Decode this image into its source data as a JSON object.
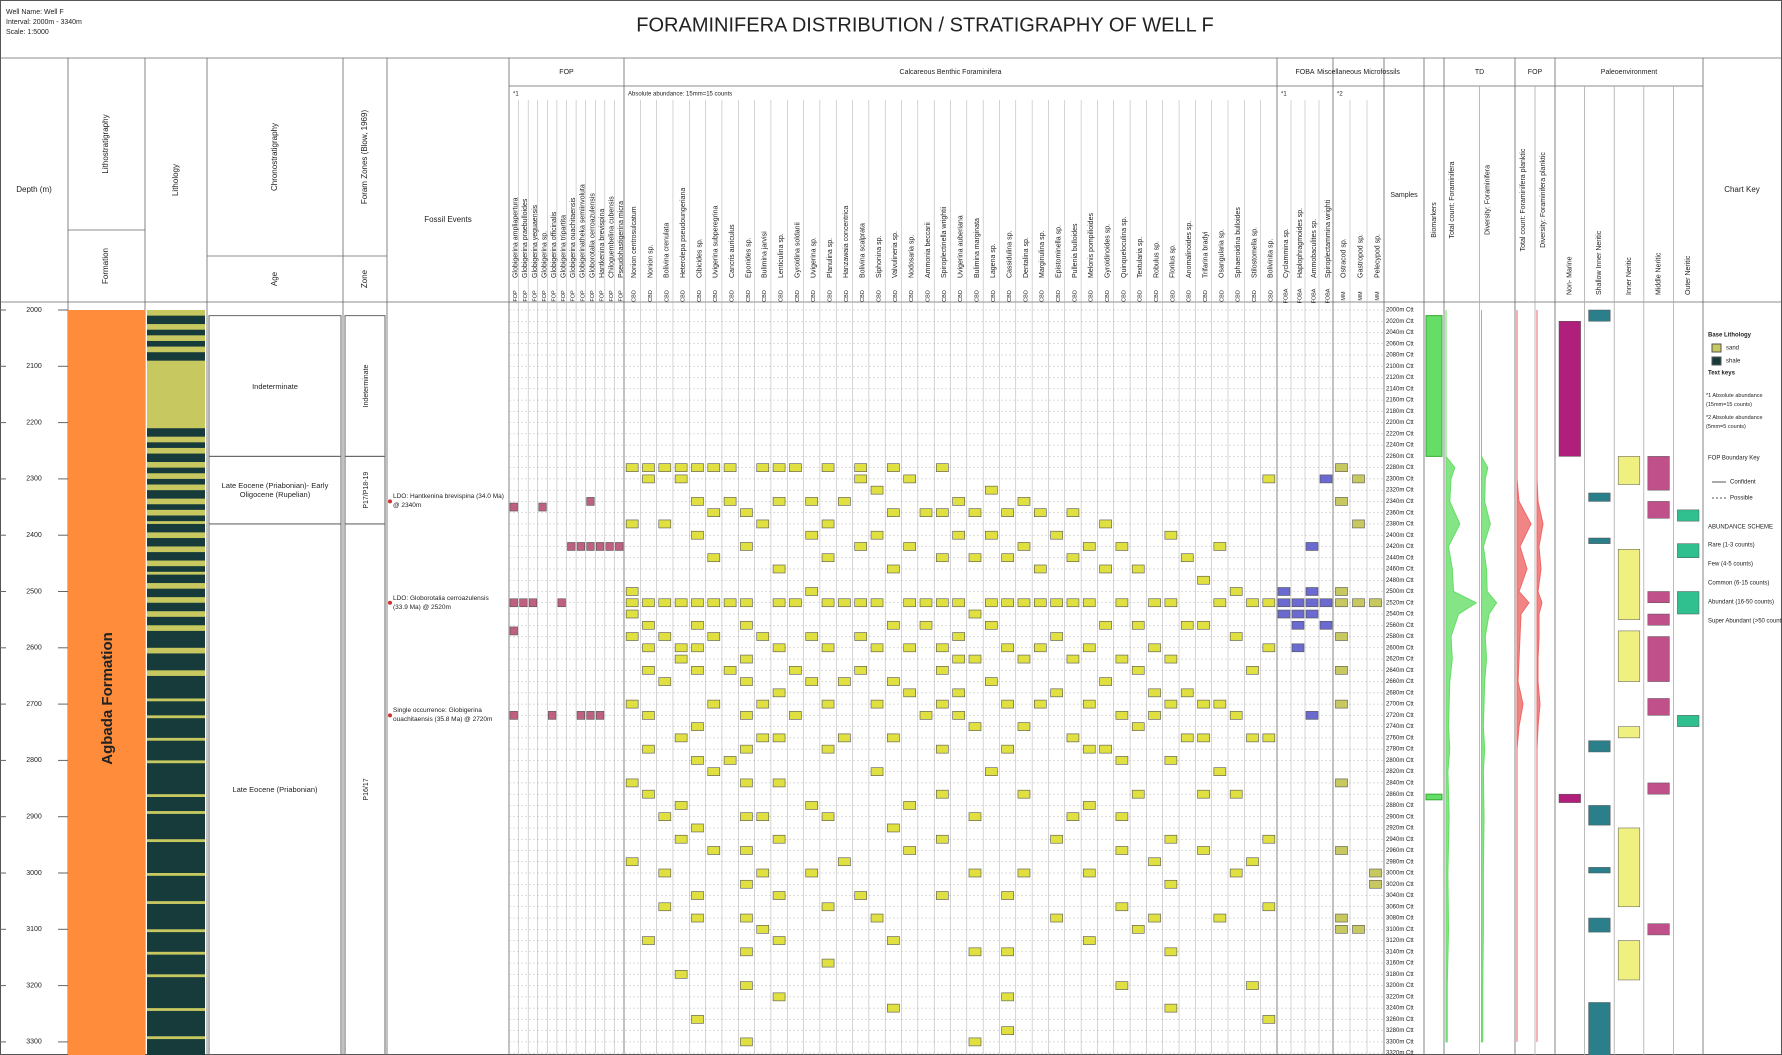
{
  "header": {
    "well_name": "Well Name: Well F",
    "interval": "Interval: 2000m - 3340m",
    "scale": "Scale: 1:5000",
    "title": "FORAMINIFERA DISTRIBUTION  /  STRATIGRAPHY OF WELL F"
  },
  "columns": {
    "depth": "Depth (m)",
    "litho": "Lithostratigraphy",
    "formation": "Formation",
    "lithology": "Lithology",
    "chrono": "Chronostratigraphy",
    "age": "Age",
    "zones": "Foram Zones (Blow, 1969)",
    "zone": "Zone",
    "events": "Fossil Events",
    "samples": "Samples",
    "biomarkers": "Biomarkers",
    "key": "Chart Key"
  },
  "depth_axis": {
    "range": [
      2000,
      3340
    ],
    "ticks": [
      2000,
      2100,
      2200,
      2300,
      2400,
      2500,
      2600,
      2700,
      2800,
      2900,
      3000,
      3100,
      3200,
      3300
    ]
  },
  "formation": {
    "name": "Agbada Formation",
    "color": "#ff8c3a",
    "top": 2000,
    "base": 3340
  },
  "lithology": {
    "sand_color": "#c8c860",
    "shale_color": "#173b3b",
    "sand_beds": [
      [
        2000,
        2010
      ],
      [
        2025,
        2035
      ],
      [
        2045,
        2055
      ],
      [
        2065,
        2075
      ],
      [
        2090,
        2210
      ],
      [
        2225,
        2235
      ],
      [
        2245,
        2255
      ],
      [
        2270,
        2280
      ],
      [
        2290,
        2300
      ],
      [
        2310,
        2320
      ],
      [
        2335,
        2345
      ],
      [
        2355,
        2365
      ],
      [
        2375,
        2380
      ],
      [
        2395,
        2405
      ],
      [
        2420,
        2430
      ],
      [
        2445,
        2455
      ],
      [
        2465,
        2470
      ],
      [
        2485,
        2495
      ],
      [
        2510,
        2520
      ],
      [
        2535,
        2545
      ],
      [
        2560,
        2570
      ],
      [
        2600,
        2610
      ],
      [
        2640,
        2650
      ],
      [
        2690,
        2695
      ],
      [
        2720,
        2725
      ],
      [
        2760,
        2765
      ],
      [
        2800,
        2805
      ],
      [
        2860,
        2865
      ],
      [
        2890,
        2895
      ],
      [
        2940,
        2945
      ],
      [
        3000,
        3005
      ],
      [
        3050,
        3055
      ],
      [
        3100,
        3105
      ],
      [
        3140,
        3145
      ],
      [
        3180,
        3185
      ],
      [
        3240,
        3245
      ],
      [
        3290,
        3295
      ]
    ]
  },
  "ages": [
    {
      "label": "Indeterminate",
      "top": 2010,
      "base": 2260
    },
    {
      "label": "Late Eocene (Priabonian)- Early Oligocene (Rupelian)",
      "top": 2260,
      "base": 2380
    },
    {
      "label": "Late Eocene (Priabonian)",
      "top": 2380,
      "base": 3340
    }
  ],
  "zones": [
    {
      "label": "Indeterminate",
      "top": 2010,
      "base": 2260
    },
    {
      "label": "P17/P18-19",
      "top": 2260,
      "base": 2380
    },
    {
      "label": "P16/17",
      "top": 2380,
      "base": 3340
    }
  ],
  "events": [
    {
      "label": "LDO: Hantkenina brevispina (34.0 Ma) @ 2340m",
      "depth": 2340
    },
    {
      "label": "LDO: Globorotalia cerroazulensis (33.9 Ma) @ 2520m",
      "depth": 2520
    },
    {
      "label": "Single occurrence: Globigerina ouachitaensis (35.8 Ma) @ 2720m",
      "depth": 2720
    }
  ],
  "groups": [
    {
      "title": "FOP",
      "code": "FOP",
      "color": "#c06080",
      "note": "*1",
      "species": [
        "Globigerina ampliapertura",
        "Globigerina praebulloides",
        "Globigerina yeguaensis",
        "Globigerina sp.",
        "Globigerina officinalis",
        "Globigerina tripartita",
        "Globigerina ouachitaensis",
        "Globigerinatheka semiinvoluta",
        "Globorotalia cerroazulensis",
        "Hantkenina brevispina",
        "Chiloguembelina cubensis",
        "Pseudohastigerina micra"
      ],
      "occurrences": [
        [
          2350,
          2520,
          2570,
          2720
        ],
        [
          2520
        ],
        [
          2520
        ],
        [
          2350
        ],
        [
          2720
        ],
        [
          2520
        ],
        [
          2420
        ],
        [
          2420,
          2720
        ],
        [
          2340,
          2420,
          2720
        ],
        [
          2420,
          2720
        ],
        [
          2420
        ],
        [
          2420
        ]
      ]
    },
    {
      "title": "Calcareous Benthic Foraminifera",
      "code": "CBD",
      "color": "#e0e040",
      "note": "Absolute abundance: 15mm=15 counts",
      "species": [
        "Nonion centrosulcatum",
        "Nonion sp.",
        "Bolivina crenulata",
        "Heterolepa pseudoungeriana",
        "Cibicides sp.",
        "Uvigerina subperegrina",
        "Cancris auriculus",
        "Eponides sp.",
        "Bulimina jarvisi",
        "Lenticulina sp.",
        "Gyroidina soldanii",
        "Uvigerina sp.",
        "Planulina sp.",
        "Hanzawaia concentrica",
        "Bolivina scalprata",
        "Siphonina sp.",
        "Valvulineria sp.",
        "Nodosaria sp.",
        "Ammonia beccarii",
        "Spiroplectinella wrightii",
        "Uvigerina auberiana",
        "Bulimina marginata",
        "Lagena sp.",
        "Cassidulina sp.",
        "Dentalina sp.",
        "Marginulina sp.",
        "Epistominella sp.",
        "Pullenia bulloides",
        "Melonis pompilioides",
        "Gyroidinoides sp.",
        "Quinqueloculina sp.",
        "Textularia sp.",
        "Robulus sp.",
        "Florilus sp.",
        "Anomalinoides sp.",
        "Trifarina bradyi",
        "Osangularia sp.",
        "Sphaeroidina bulloides",
        "Stilostomella sp.",
        "Bolivinita sp."
      ],
      "occurrences": [
        [
          2280,
          2380,
          2500,
          2520,
          2540,
          2580,
          2700,
          2840,
          2980
        ],
        [
          2280,
          2300,
          2520,
          2560,
          2600,
          2640,
          2720,
          2780,
          2860,
          3120
        ],
        [
          2280,
          2380,
          2520,
          2580,
          2660,
          2900,
          3000,
          3060
        ],
        [
          2280,
          2300,
          2520,
          2600,
          2620,
          2760,
          2880,
          2940,
          3180
        ],
        [
          2280,
          2340,
          2400,
          2520,
          2560,
          2600,
          2640,
          2740,
          2800,
          2920,
          3040,
          3080,
          3260
        ],
        [
          2280,
          2360,
          2440,
          2520,
          2580,
          2700,
          2820,
          2960
        ],
        [
          2280,
          2340,
          2520,
          2640,
          2800
        ],
        [
          2360,
          2420,
          2520,
          2560,
          2620,
          2660,
          2720,
          2780,
          2840,
          2900,
          2960,
          3020,
          3080,
          3140,
          3200,
          3300
        ],
        [
          2280,
          2380,
          2580,
          2700,
          2760,
          2900,
          3000,
          3100
        ],
        [
          2280,
          2340,
          2460,
          2520,
          2600,
          2680,
          2760,
          2840,
          2940,
          3040,
          3120,
          3220
        ],
        [
          2280,
          2520,
          2640,
          2720
        ],
        [
          2340,
          2400,
          2500,
          2580,
          2660,
          2880,
          3000
        ],
        [
          2280,
          2380,
          2440,
          2520,
          2600,
          2700,
          2780,
          2900,
          3060,
          3160
        ],
        [
          2340,
          2520,
          2660,
          2760,
          2980
        ],
        [
          2280,
          2300,
          2420,
          2520,
          2580,
          2640,
          3040
        ],
        [
          2320,
          2400,
          2520,
          2600,
          2700,
          2820,
          3080
        ],
        [
          2280,
          2360,
          2460,
          2560,
          2660,
          2760,
          2920,
          3120,
          3240
        ],
        [
          2300,
          2420,
          2520,
          2600,
          2680,
          2880,
          2960
        ],
        [
          2360,
          2520,
          2560,
          2720
        ],
        [
          2280,
          2360,
          2440,
          2520,
          2600,
          2640,
          2700,
          2780,
          2860,
          2940,
          3040
        ],
        [
          2340,
          2400,
          2520,
          2580,
          2620,
          2680,
          2720
        ],
        [
          2360,
          2440,
          2540,
          2620,
          2740,
          2900,
          3000,
          3140,
          3300
        ],
        [
          2320,
          2400,
          2520,
          2560,
          2660,
          2820
        ],
        [
          2360,
          2440,
          2520,
          2600,
          2700,
          2780,
          3040,
          3140,
          3220,
          3280
        ],
        [
          2340,
          2420,
          2520,
          2620,
          2740,
          2860,
          3000
        ],
        [
          2360,
          2460,
          2520,
          2600,
          2700
        ],
        [
          2400,
          2520,
          2580,
          2680,
          2940,
          3080
        ],
        [
          2360,
          2440,
          2520,
          2620,
          2760,
          2900
        ],
        [
          2420,
          2520,
          2600,
          2700,
          2780,
          2880,
          3000,
          3120
        ],
        [
          2380,
          2460,
          2560,
          2660,
          2780
        ],
        [
          2420,
          2520,
          2620,
          2720,
          2800,
          2900,
          2960,
          3060,
          3200
        ],
        [
          2460,
          2560,
          2640,
          2740,
          2860,
          3100
        ],
        [
          2520,
          2600,
          2680,
          2720,
          2980,
          3080
        ],
        [
          2400,
          2520,
          2620,
          2700,
          2800,
          2940,
          3020,
          3140,
          3240
        ],
        [
          2440,
          2560,
          2680,
          2760
        ],
        [
          2480,
          2560,
          2700,
          2760,
          2860,
          2960
        ],
        [
          2420,
          2520,
          2700,
          2820,
          3080
        ],
        [
          2500,
          2580,
          2720,
          2860,
          3000
        ],
        [
          2520,
          2640,
          2760,
          2980,
          3200
        ],
        [
          2300,
          2520,
          2600,
          2760,
          2940,
          3060,
          3260
        ]
      ]
    },
    {
      "title": "FOBA",
      "code": "FOBA",
      "color": "#6a6ad0",
      "note": "*1",
      "species": [
        "Cyclammina sp.",
        "Haplophragmoides sp.",
        "Ammobaculites sp.",
        "Spiroplectammina wrighti"
      ],
      "occurrences": [
        [
          2500,
          2520,
          2540
        ],
        [
          2520,
          2540,
          2560,
          2600
        ],
        [
          2420,
          2500,
          2520,
          2540,
          2720
        ],
        [
          2300,
          2520,
          2560
        ]
      ]
    },
    {
      "title": "Miscellaneous Microfossils",
      "code": "MM",
      "color": "#c8c860",
      "note": "*2",
      "species": [
        "Ostracod sp.",
        "Gastropod sp.",
        "Pelecypod sp."
      ],
      "occurrences": [
        [
          2280,
          2340,
          2500,
          2520,
          2580,
          2640,
          2700,
          2840,
          2960,
          3080,
          3100
        ],
        [
          2300,
          2380,
          2520,
          3100
        ],
        [
          2520,
          3000,
          3020
        ]
      ]
    }
  ],
  "samples": {
    "depths": [
      2000,
      2020,
      2040,
      2060,
      2080,
      2100,
      2120,
      2140,
      2160,
      2180,
      2200,
      2220,
      2240,
      2260,
      2280,
      2300,
      2320,
      2340,
      2360,
      2380,
      2400,
      2420,
      2440,
      2460,
      2480,
      2500,
      2520,
      2540,
      2560,
      2580,
      2600,
      2620,
      2640,
      2660,
      2680,
      2700,
      2720,
      2740,
      2760,
      2780,
      2800,
      2820,
      2840,
      2860,
      2880,
      2900,
      2920,
      2940,
      2960,
      2980,
      3000,
      3020,
      3040,
      3060,
      3080,
      3100,
      3120,
      3140,
      3160,
      3180,
      3200,
      3220,
      3240,
      3260,
      3280,
      3300,
      3320
    ],
    "labels": [
      "2000m Ctt",
      "2020m Ctt",
      "2040m Ctt",
      "2060m Ctt",
      "2080m Ctt",
      "2100m Ctt",
      "2120m Ctt",
      "2140m Ctt",
      "2160m Ctt",
      "2180m Ctt",
      "2200m Ctt",
      "2220m Ctt",
      "2240m Ctt",
      "2260m Ctt",
      "2280m Ctt",
      "2300m Ctt",
      "2320m Ctt",
      "2340m Ctt",
      "2360m Ctt",
      "2380m Ctt",
      "2400m Ctt",
      "2420m Ctt",
      "2440m Ctt",
      "2460m Ctt",
      "2480m Ctt",
      "2500m Ctt",
      "2520m Ctt",
      "2540m Ctt",
      "2560m Ctt",
      "2580m Ctt",
      "2600m Ctt",
      "2620m Ctt",
      "2640m Ctt",
      "2660m Ctt",
      "2680m Ctt",
      "2700m Ctt",
      "2720m Ctt",
      "2740m Ctt",
      "2760m Ctt",
      "2780m Ctt",
      "2800m Ctt",
      "2820m Ctt",
      "2840m Ctt",
      "2860m Ctt",
      "2880m Ctt",
      "2900m Ctt",
      "2920m Ctt",
      "2940m Ctt",
      "2960m Ctt",
      "2980m Ctt",
      "3000m Ctt",
      "3020m Ctt",
      "3040m Ctt",
      "3060m Ctt",
      "3080m Ctt",
      "3100m Ctt",
      "3120m Ctt",
      "3140m Ctt",
      "3160m Ctt",
      "3180m Ctt",
      "3200m Ctt",
      "3220m Ctt",
      "3240m Ctt",
      "3260m Ctt",
      "3280m Ctt",
      "3300m Ctt",
      "3320m Ctt"
    ]
  },
  "biomarkers": {
    "color": "#66dd66",
    "intervals": [
      [
        2010,
        2260
      ],
      [
        2860,
        2870
      ]
    ]
  },
  "td": {
    "title": "TD",
    "total_label": "Total count: Foraminifera",
    "diversity_label": "Diversity: Foraminifera",
    "color": "#66dd66",
    "xlim": [
      0,
      50
    ],
    "depths": [
      2000,
      2100,
      2200,
      2260,
      2280,
      2300,
      2340,
      2380,
      2420,
      2460,
      2500,
      2520,
      2540,
      2580,
      2620,
      2660,
      2700,
      2740,
      2780,
      2820,
      2900,
      3000,
      3100,
      3200,
      3300
    ],
    "total": [
      0,
      0,
      0,
      0,
      14,
      8,
      6,
      22,
      4,
      10,
      12,
      48,
      20,
      8,
      10,
      6,
      5,
      4,
      6,
      3,
      5,
      3,
      4,
      2,
      2
    ],
    "diversity": [
      0,
      0,
      0,
      0,
      10,
      6,
      5,
      14,
      3,
      8,
      9,
      24,
      12,
      6,
      8,
      5,
      4,
      3,
      5,
      3,
      4,
      3,
      3,
      2,
      2
    ]
  },
  "fop_count": {
    "title": "FOP",
    "total_label": "Total count: Foraminifera planktic",
    "diversity_label": "Diversity: Foraminifera planktic",
    "color": "#ee6666",
    "xlim": [
      0,
      16
    ],
    "depths": [
      2000,
      2100,
      2200,
      2260,
      2280,
      2300,
      2340,
      2380,
      2420,
      2460,
      2500,
      2520,
      2540,
      2580,
      2620,
      2660,
      2700,
      2740,
      2780,
      2820,
      2900,
      3000,
      3100,
      3200,
      3300
    ],
    "total": [
      0,
      0,
      0,
      0,
      0,
      0,
      2,
      14,
      3,
      10,
      2,
      12,
      4,
      3,
      2,
      1,
      6,
      2,
      0,
      0,
      0,
      0,
      0,
      0,
      0
    ],
    "diversity": [
      0,
      0,
      0,
      0,
      0,
      0,
      1,
      6,
      2,
      4,
      1,
      5,
      2,
      2,
      1,
      1,
      3,
      1,
      0,
      0,
      0,
      0,
      0,
      0,
      0
    ]
  },
  "paleo": {
    "title": "Paleoenvironment",
    "envs": [
      {
        "label": "Non- Marine",
        "color": "#b0207a"
      },
      {
        "label": "Shallow Inner Neritic",
        "color": "#2a7f8a"
      },
      {
        "label": "Inner Neritic",
        "color": "#f0f080"
      },
      {
        "label": "Middle Neritic",
        "color": "#c0508a"
      },
      {
        "label": "Outer Neritic",
        "color": "#30c090"
      }
    ],
    "intervals": [
      [
        0,
        2020,
        2260
      ],
      [
        0,
        2860,
        2875
      ],
      [
        1,
        2000,
        2020
      ],
      [
        1,
        2325,
        2340
      ],
      [
        1,
        2405,
        2415
      ],
      [
        1,
        2765,
        2785
      ],
      [
        1,
        2880,
        2915
      ],
      [
        1,
        2990,
        3000
      ],
      [
        1,
        3080,
        3105
      ],
      [
        1,
        3230,
        3340
      ],
      [
        2,
        2260,
        2310
      ],
      [
        2,
        2425,
        2550
      ],
      [
        2,
        2570,
        2660
      ],
      [
        2,
        2740,
        2760
      ],
      [
        2,
        2920,
        3060
      ],
      [
        2,
        3120,
        3190
      ],
      [
        3,
        2260,
        2320
      ],
      [
        3,
        2340,
        2370
      ],
      [
        3,
        2500,
        2520
      ],
      [
        3,
        2540,
        2560
      ],
      [
        3,
        2580,
        2660
      ],
      [
        3,
        2690,
        2720
      ],
      [
        3,
        2840,
        2860
      ],
      [
        3,
        3090,
        3110
      ],
      [
        4,
        2355,
        2375
      ],
      [
        4,
        2415,
        2440
      ],
      [
        4,
        2500,
        2540
      ],
      [
        4,
        2720,
        2740
      ]
    ]
  },
  "key": {
    "lithology_title": "Base Lithology",
    "sand": "sand",
    "shale": "shale",
    "text_keys": "Text keys",
    "note1": "*1 Absolute abundance (15mm=15 counts)",
    "note2": "*2 Absolute abundance (5mm=5 counts)",
    "fop_key": "FOP Boundary Key",
    "confident": "Confident",
    "possible": "Possible",
    "abundance_title": "ABUNDANCE SCHEME",
    "abundance": [
      "Rare (1-3 counts)",
      "Few (4-5 counts)",
      "Common (6-15 counts)",
      "Abundant (16-50 counts)",
      "Super Abundant (>50 counts)"
    ]
  }
}
